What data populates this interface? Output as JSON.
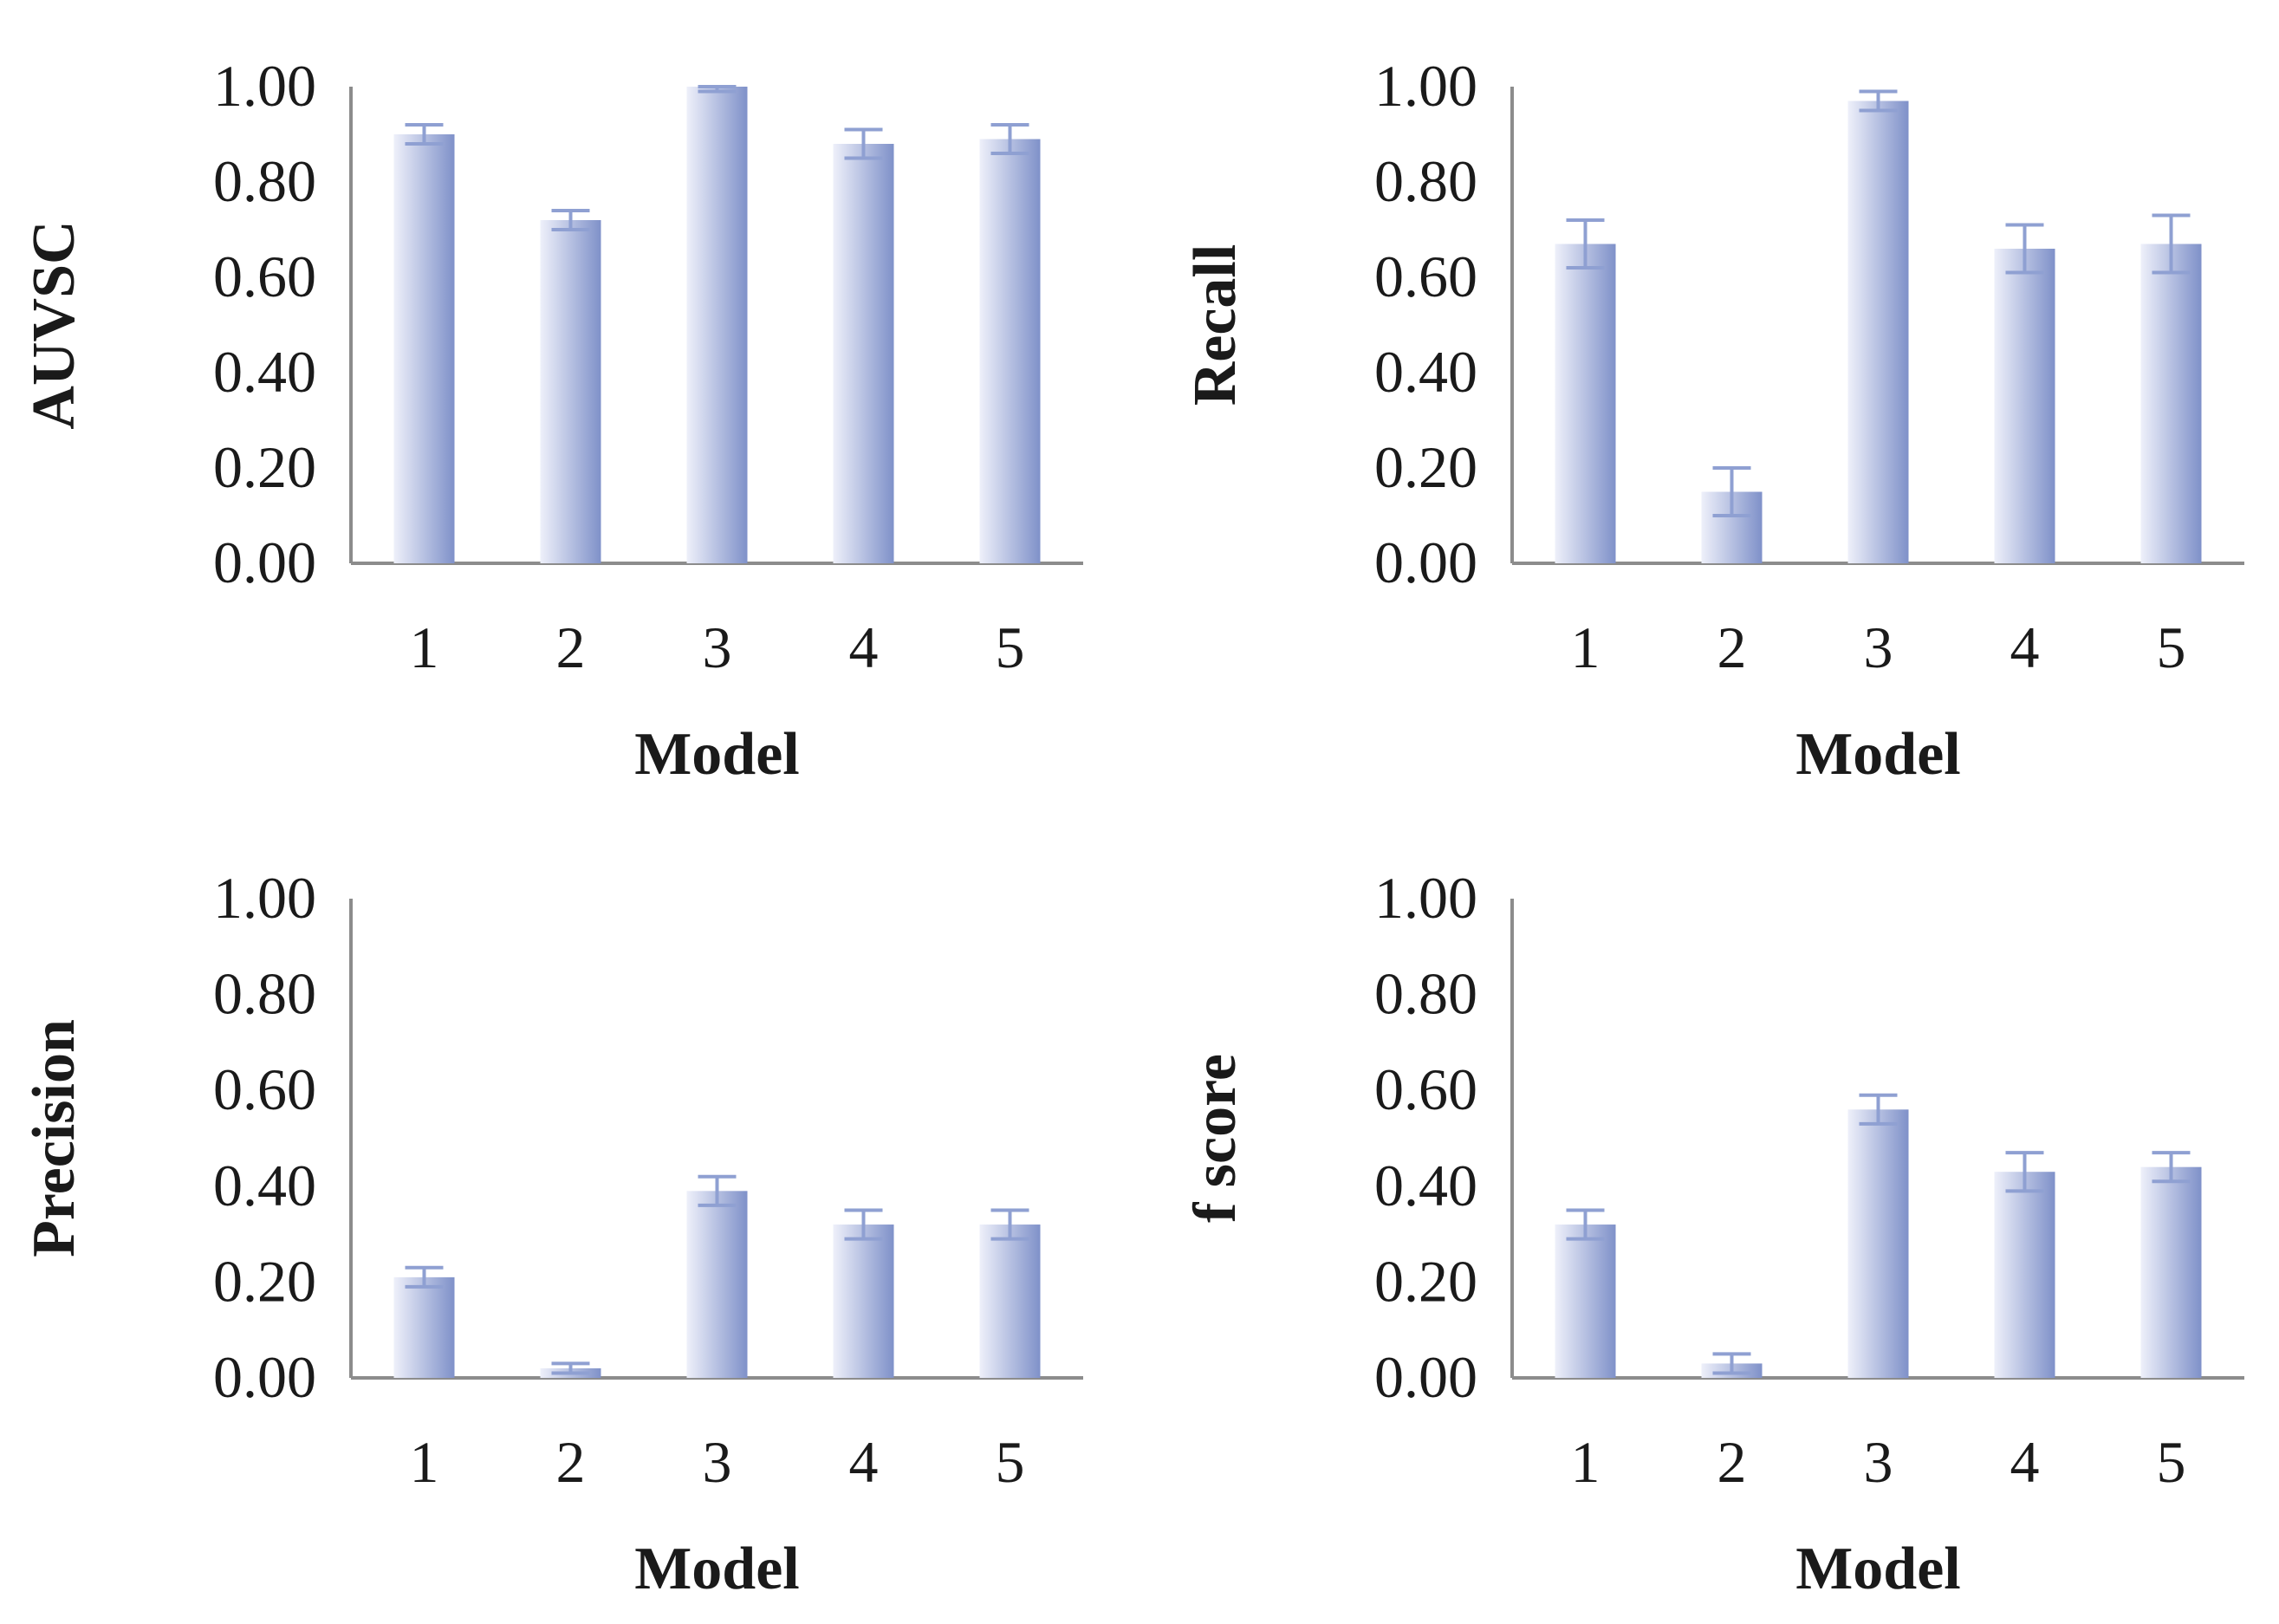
{
  "colors": {
    "bar_light": "#eef0fa",
    "bar_dark": "#7f91c9",
    "error_bar": "#8fa0d2",
    "axis": "#8c8c8c"
  },
  "chart_data": [
    {
      "type": "bar",
      "title": "",
      "xlabel": "Model",
      "ylabel": "AUVSC",
      "categories": [
        "1",
        "2",
        "3",
        "4",
        "5"
      ],
      "values": [
        0.9,
        0.72,
        1.0,
        0.88,
        0.89
      ],
      "errors": [
        0.02,
        0.02,
        0.01,
        0.03,
        0.03
      ],
      "ylim": [
        0,
        1
      ],
      "yticks": [
        "0.00",
        "0.20",
        "0.40",
        "0.60",
        "0.80",
        "1.00"
      ],
      "grid": false,
      "error_bars": true
    },
    {
      "type": "bar",
      "title": "",
      "xlabel": "Model",
      "ylabel": "Recall",
      "categories": [
        "1",
        "2",
        "3",
        "4",
        "5"
      ],
      "values": [
        0.67,
        0.15,
        0.97,
        0.66,
        0.67
      ],
      "errors": [
        0.05,
        0.05,
        0.02,
        0.05,
        0.06
      ],
      "ylim": [
        0,
        1
      ],
      "yticks": [
        "0.00",
        "0.20",
        "0.40",
        "0.60",
        "0.80",
        "1.00"
      ],
      "grid": false,
      "error_bars": true
    },
    {
      "type": "bar",
      "title": "",
      "xlabel": "Model",
      "ylabel": "Precision",
      "categories": [
        "1",
        "2",
        "3",
        "4",
        "5"
      ],
      "values": [
        0.21,
        0.02,
        0.39,
        0.32,
        0.32
      ],
      "errors": [
        0.02,
        0.01,
        0.03,
        0.03,
        0.03
      ],
      "ylim": [
        0,
        1
      ],
      "yticks": [
        "0.00",
        "0.20",
        "0.40",
        "0.60",
        "0.80",
        "1.00"
      ],
      "grid": false,
      "error_bars": true
    },
    {
      "type": "bar",
      "title": "",
      "xlabel": "Model",
      "ylabel": "f score",
      "categories": [
        "1",
        "2",
        "3",
        "4",
        "5"
      ],
      "values": [
        0.32,
        0.03,
        0.56,
        0.43,
        0.44
      ],
      "errors": [
        0.03,
        0.02,
        0.03,
        0.04,
        0.03
      ],
      "ylim": [
        0,
        1
      ],
      "yticks": [
        "0.00",
        "0.20",
        "0.40",
        "0.60",
        "0.80",
        "1.00"
      ],
      "grid": false,
      "error_bars": true
    }
  ]
}
